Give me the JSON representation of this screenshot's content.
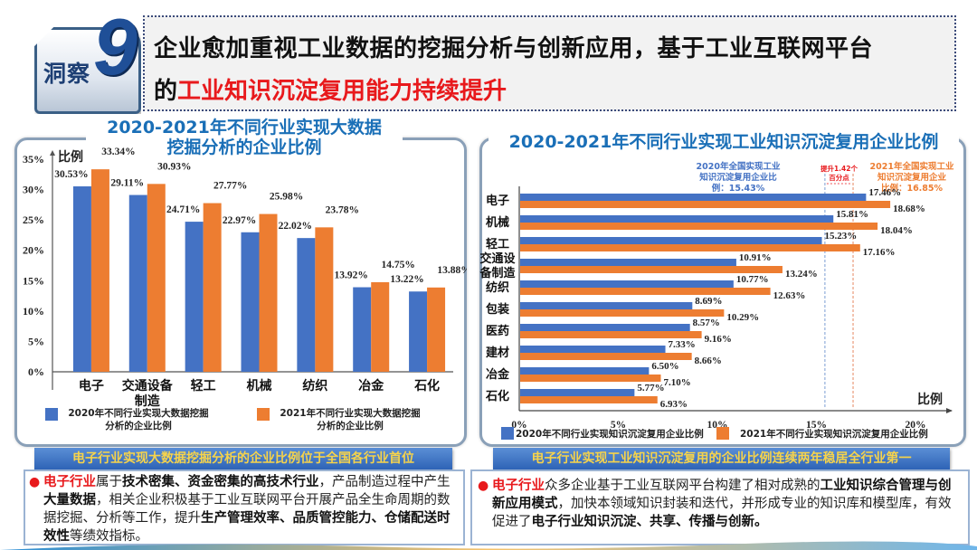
{
  "header": {
    "badge_label": "洞察",
    "badge_number": "9",
    "title_line1": "企业愈加重视工业数据的挖掘分析与创新应用，基于工业互联网平台",
    "title_line2_prefix": "的",
    "title_line2_highlight": "工业知识沉淀复用能力持续提升"
  },
  "colors": {
    "series_2020": "#4472c4",
    "series_2021": "#ed7d31",
    "title_blue": "#1a6fb7",
    "highlight_red": "#e8191c"
  },
  "chart_data": [
    {
      "type": "bar",
      "title": "2020-2021年不同行业实现大数据挖掘分析的企业比例",
      "title_line1": "2020-2021年不同行业实现大数据",
      "title_line2": "挖掘分析的企业比例",
      "xlabel": "",
      "ylabel": "比例",
      "ylim": [
        0,
        35
      ],
      "yticks": [
        "0%",
        "5%",
        "10%",
        "15%",
        "20%",
        "25%",
        "30%",
        "35%"
      ],
      "ytick_values": [
        0,
        5,
        10,
        15,
        20,
        25,
        30,
        35
      ],
      "grid": false,
      "legend_position": "bottom",
      "categories": [
        "电子",
        "交通设备制造",
        "轻工",
        "机械",
        "纺织",
        "冶金",
        "石化"
      ],
      "category_lines": [
        [
          "电子"
        ],
        [
          "交通设备",
          "制造"
        ],
        [
          "轻工"
        ],
        [
          "机械"
        ],
        [
          "纺织"
        ],
        [
          "冶金"
        ],
        [
          "石化"
        ]
      ],
      "series": [
        {
          "name": "2020年不同行业实现大数据挖掘分析的企业比例",
          "legend_lines": [
            "2020年不同行业实现大数据挖掘",
            "分析的企业比例"
          ],
          "values": [
            30.53,
            29.11,
            24.71,
            22.97,
            22.02,
            13.92,
            13.22
          ],
          "labels": [
            "30.53%",
            "29.11%",
            "24.71%",
            "22.97%",
            "22.02%",
            "13.92%",
            "13.22%"
          ]
        },
        {
          "name": "2021年不同行业实现大数据挖掘分析的企业比例",
          "legend_lines": [
            "2021年不同行业实现大数据挖掘",
            "分析的企业比例"
          ],
          "values": [
            33.34,
            30.93,
            27.77,
            25.98,
            23.78,
            14.75,
            13.88
          ],
          "labels": [
            "33.34%",
            "30.93%",
            "27.77%",
            "25.98%",
            "23.78%",
            "14.75%",
            "13.88%"
          ]
        }
      ]
    },
    {
      "type": "bar",
      "orientation": "horizontal",
      "title": "2020-2021年不同行业实现工业知识沉淀复用企业比例",
      "xlabel": "比例",
      "ylabel": "",
      "xlim": [
        0,
        20
      ],
      "xticks": [
        "0%",
        "5%",
        "10%",
        "15%",
        "20%"
      ],
      "xtick_values": [
        0,
        5,
        10,
        15,
        20
      ],
      "grid": false,
      "legend_position": "bottom",
      "categories": [
        "电子",
        "机械",
        "轻工",
        "交通设备制造",
        "纺织",
        "包装",
        "医药",
        "建材",
        "冶金",
        "石化"
      ],
      "category_display": [
        "电子",
        "机械",
        "轻工",
        "交通设\n备制造",
        "纺织",
        "包装",
        "医药",
        "建材",
        "冶金",
        "石化"
      ],
      "series": [
        {
          "name": "2020年不同行业实现知识沉淀复用企业比例",
          "values": [
            17.46,
            15.81,
            15.23,
            10.91,
            10.77,
            8.69,
            8.57,
            7.33,
            6.5,
            5.77
          ],
          "labels": [
            "17.46%",
            "15.81%",
            "15.23%",
            "10.91%",
            "10.77%",
            "8.69%",
            "8.57%",
            "7.33%",
            "6.50%",
            "5.77%"
          ]
        },
        {
          "name": "2021年不同行业实现知识沉淀复用企业比例",
          "values": [
            18.68,
            18.04,
            17.16,
            13.24,
            12.63,
            10.29,
            9.16,
            8.66,
            7.1,
            6.93
          ],
          "labels": [
            "18.68%",
            "18.04%",
            "17.16%",
            "13.24%",
            "12.63%",
            "10.29%",
            "9.16%",
            "8.66%",
            "7.10%",
            "6.93%"
          ]
        }
      ],
      "reference_lines": [
        {
          "name": "2020全国平均",
          "value": 15.43,
          "annotation_lines": [
            "2020年全国实现工业",
            "知识沉淀复用企业比",
            "例：15.43%"
          ]
        },
        {
          "name": "2021全国平均",
          "value": 16.85,
          "annotation_lines": [
            "2021年全国实现工业",
            "知识沉淀复用企业",
            "比例：16.85%"
          ]
        }
      ],
      "gap_annotation_lines": [
        "提升1.42个",
        "百分点"
      ]
    }
  ],
  "bottom": {
    "left_banner": "电子行业实现大数据挖掘分析的企业比例位于全国各行业首位",
    "right_banner": "电子行业实现工业知识沉淀复用的企业比例连续两年稳居全行业第一",
    "left_text": [
      {
        "t": "电子行业",
        "s": "red"
      },
      {
        "t": "属于",
        "s": ""
      },
      {
        "t": "技术密集、资金密集的高技术行业",
        "s": "b"
      },
      {
        "t": "，产品制造过程中产生",
        "s": ""
      },
      {
        "t": "大量数据",
        "s": "b"
      },
      {
        "t": "，相关企业积极基于工业互联网平台开展产品全生命周期的数据挖掘、分析等工作，提升",
        "s": ""
      },
      {
        "t": "生产管理效率、品质管控能力、仓储配送时效性",
        "s": "b"
      },
      {
        "t": "等绩效指标。",
        "s": ""
      }
    ],
    "right_text": [
      {
        "t": "电子行业",
        "s": "red"
      },
      {
        "t": "众多企业基于工业互联网平台构建了相对成熟的",
        "s": ""
      },
      {
        "t": "工业知识综合管理与创新应用模式",
        "s": "b"
      },
      {
        "t": "，加快本领域知识封装和迭代，并形成专业的知识库和模型库，有效促进了",
        "s": ""
      },
      {
        "t": "电子行业知识沉淀、共享、传播与创新。",
        "s": "b"
      }
    ]
  }
}
